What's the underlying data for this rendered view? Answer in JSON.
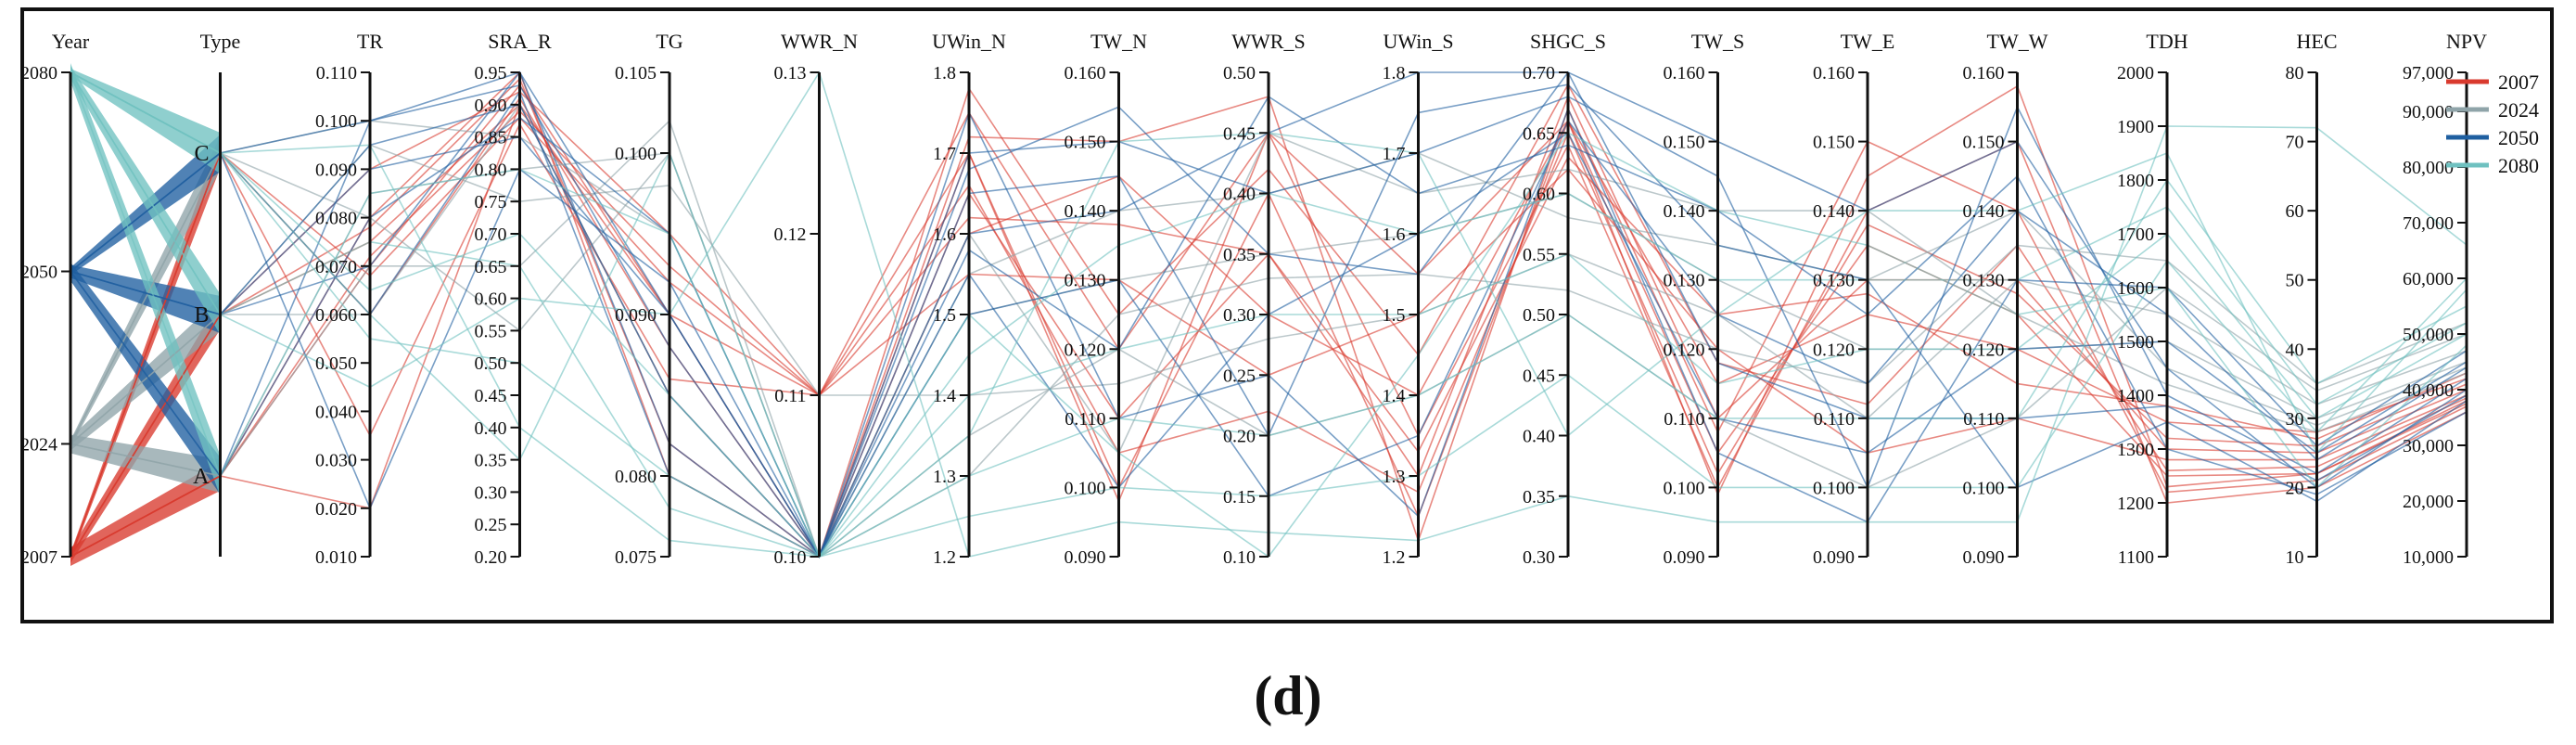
{
  "chart_data": {
    "type": "parallel-coordinates",
    "panel_label": "(d)",
    "axes": [
      {
        "name": "Year",
        "kind": "categorical",
        "ticks": [
          "2080",
          "2050",
          "2024",
          "2007"
        ],
        "tick_values": [
          2080,
          2050,
          2024,
          2007
        ],
        "range": [
          2007,
          2080
        ]
      },
      {
        "name": "Type",
        "kind": "categorical",
        "ticks": [
          "C",
          "B",
          "A"
        ],
        "tick_values": [
          3,
          2,
          1
        ],
        "range": [
          0.5,
          3.5
        ]
      },
      {
        "name": "TR",
        "ticks": [
          "0.110",
          "0.100",
          "0.090",
          "0.080",
          "0.070",
          "0.060",
          "0.050",
          "0.040",
          "0.030",
          "0.020",
          "0.010"
        ],
        "range": [
          0.01,
          0.11
        ]
      },
      {
        "name": "SRA_R",
        "ticks": [
          "0.95",
          "0.90",
          "0.85",
          "0.80",
          "0.75",
          "0.70",
          "0.65",
          "0.60",
          "0.55",
          "0.50",
          "0.45",
          "0.40",
          "0.35",
          "0.30",
          "0.25",
          "0.20"
        ],
        "range": [
          0.2,
          0.95
        ]
      },
      {
        "name": "TG",
        "ticks": [
          "0.105",
          "0.100",
          "0.090",
          "0.080",
          "0.075"
        ],
        "range": [
          0.075,
          0.105
        ]
      },
      {
        "name": "WWR_N",
        "ticks": [
          "0.13",
          "0.12",
          "0.11",
          "0.10"
        ],
        "range": [
          0.1,
          0.13
        ]
      },
      {
        "name": "UWin_N",
        "ticks": [
          "1.8",
          "1.7",
          "1.6",
          "1.5",
          "1.4",
          "1.3",
          "1.2"
        ],
        "range": [
          1.2,
          1.8
        ]
      },
      {
        "name": "TW_N",
        "ticks": [
          "0.160",
          "0.150",
          "0.140",
          "0.130",
          "0.120",
          "0.110",
          "0.100",
          "0.090"
        ],
        "range": [
          0.09,
          0.16
        ]
      },
      {
        "name": "WWR_S",
        "ticks": [
          "0.50",
          "0.45",
          "0.40",
          "0.35",
          "0.30",
          "0.25",
          "0.20",
          "0.15",
          "0.10"
        ],
        "range": [
          0.1,
          0.5
        ]
      },
      {
        "name": "UWin_S",
        "ticks": [
          "1.8",
          "1.7",
          "1.6",
          "1.5",
          "1.4",
          "1.3",
          "1.2"
        ],
        "range": [
          1.2,
          1.8
        ]
      },
      {
        "name": "SHGC_S",
        "ticks": [
          "0.70",
          "0.65",
          "0.60",
          "0.55",
          "0.50",
          "0.45",
          "0.40",
          "0.35",
          "0.30"
        ],
        "range": [
          0.3,
          0.7
        ]
      },
      {
        "name": "TW_S",
        "ticks": [
          "0.160",
          "0.150",
          "0.140",
          "0.130",
          "0.120",
          "0.110",
          "0.100",
          "0.090"
        ],
        "range": [
          0.09,
          0.16
        ]
      },
      {
        "name": "TW_E",
        "ticks": [
          "0.160",
          "0.150",
          "0.140",
          "0.130",
          "0.120",
          "0.110",
          "0.100",
          "0.090"
        ],
        "range": [
          0.09,
          0.16
        ]
      },
      {
        "name": "TW_W",
        "ticks": [
          "0.160",
          "0.150",
          "0.140",
          "0.130",
          "0.120",
          "0.110",
          "0.100",
          "0.090"
        ],
        "range": [
          0.09,
          0.16
        ]
      },
      {
        "name": "TDH",
        "ticks": [
          "2000",
          "1900",
          "1800",
          "1700",
          "1600",
          "1500",
          "1400",
          "1300",
          "1200",
          "1100"
        ],
        "range": [
          1100,
          2000
        ]
      },
      {
        "name": "HEC",
        "ticks": [
          "80",
          "70",
          "60",
          "50",
          "40",
          "30",
          "20",
          "10"
        ],
        "range": [
          10,
          80
        ]
      },
      {
        "name": "NPV",
        "ticks": [
          "97,000",
          "90,000",
          "80,000",
          "70,000",
          "60,000",
          "50,000",
          "40,000",
          "30,000",
          "20,000",
          "10,000"
        ],
        "range": [
          10000,
          97000
        ]
      }
    ],
    "legend": {
      "placement": "top-right",
      "entries": [
        {
          "label": "2007",
          "color": "#d93a2e"
        },
        {
          "label": "2024",
          "color": "#8fa4a9"
        },
        {
          "label": "2050",
          "color": "#1f5fa0"
        },
        {
          "label": "2080",
          "color": "#6fc1c0"
        }
      ]
    },
    "series": [
      {
        "name": "2007",
        "color": "#d93a2e",
        "profiles": [
          [
            2007,
            1,
            0.07,
            0.93,
            0.09,
            0.11,
            1.7,
            0.1,
            0.4,
            1.25,
            0.66,
            0.105,
            0.135,
            0.125,
            1250,
            22,
            38000
          ],
          [
            2007,
            2,
            0.075,
            0.9,
            0.085,
            0.1,
            1.65,
            0.11,
            0.35,
            1.3,
            0.68,
            0.11,
            0.13,
            0.13,
            1300,
            25,
            40000
          ],
          [
            2007,
            3,
            0.068,
            0.88,
            0.092,
            0.11,
            1.75,
            0.12,
            0.45,
            1.35,
            0.64,
            0.1,
            0.14,
            0.15,
            1200,
            20,
            36000
          ],
          [
            2007,
            1,
            0.08,
            0.95,
            0.08,
            0.1,
            1.6,
            0.145,
            0.3,
            1.4,
            0.66,
            0.115,
            0.125,
            0.12,
            1350,
            28,
            42000
          ],
          [
            2007,
            2,
            0.09,
            0.92,
            0.095,
            0.11,
            1.55,
            0.13,
            0.25,
            1.5,
            0.62,
            0.12,
            0.105,
            0.11,
            1280,
            24,
            39000
          ],
          [
            2007,
            3,
            0.06,
            0.91,
            0.088,
            0.1,
            1.72,
            0.15,
            0.48,
            1.22,
            0.67,
            0.108,
            0.15,
            0.14,
            1220,
            21,
            37000
          ],
          [
            2007,
            1,
            0.072,
            0.89,
            0.093,
            0.11,
            1.66,
            0.105,
            0.22,
            1.28,
            0.65,
            0.102,
            0.138,
            0.128,
            1320,
            26,
            41000
          ],
          [
            2007,
            2,
            0.078,
            0.94,
            0.082,
            0.1,
            1.78,
            0.125,
            0.42,
            1.45,
            0.69,
            0.118,
            0.112,
            0.135,
            1260,
            23,
            38500
          ],
          [
            2007,
            3,
            0.035,
            0.87,
            0.086,
            0.11,
            1.62,
            0.138,
            0.35,
            1.33,
            0.63,
            0.125,
            0.128,
            0.115,
            1380,
            27,
            43000
          ],
          [
            2007,
            1,
            0.02,
            0.9,
            0.09,
            0.1,
            1.7,
            0.098,
            0.45,
            1.55,
            0.66,
            0.099,
            0.145,
            0.158,
            1230,
            22,
            37500
          ]
        ]
      },
      {
        "name": "2024",
        "color": "#8fa4a9",
        "profiles": [
          [
            2024,
            1,
            0.085,
            0.8,
            0.1,
            0.1,
            1.5,
            0.13,
            0.35,
            1.6,
            0.6,
            0.13,
            0.12,
            0.12,
            1500,
            30,
            45000
          ],
          [
            2024,
            2,
            0.095,
            0.75,
            0.098,
            0.11,
            1.4,
            0.115,
            0.28,
            1.5,
            0.55,
            0.125,
            0.11,
            0.13,
            1550,
            32,
            47000
          ],
          [
            2024,
            3,
            0.1,
            0.85,
            0.095,
            0.1,
            1.55,
            0.14,
            0.4,
            1.7,
            0.58,
            0.135,
            0.13,
            0.14,
            1450,
            29,
            44000
          ],
          [
            2024,
            1,
            0.07,
            0.65,
            0.102,
            0.1,
            1.35,
            0.12,
            0.2,
            1.4,
            0.5,
            0.11,
            0.1,
            0.11,
            1600,
            34,
            50000
          ],
          [
            2024,
            2,
            0.06,
            0.9,
            0.085,
            0.1,
            1.6,
            0.105,
            0.45,
            1.65,
            0.62,
            0.14,
            0.14,
            0.125,
            1420,
            28,
            43000
          ],
          [
            2024,
            3,
            0.08,
            0.55,
            0.1,
            0.1,
            1.3,
            0.125,
            0.33,
            1.55,
            0.52,
            0.12,
            0.115,
            0.135,
            1650,
            35,
            52000
          ]
        ]
      },
      {
        "name": "2050",
        "color": "#1f5fa0",
        "profiles": [
          [
            2050,
            3,
            0.1,
            0.95,
            0.09,
            0.1,
            1.6,
            0.14,
            0.45,
            1.8,
            0.7,
            0.15,
            0.14,
            0.15,
            1450,
            20,
            40000
          ],
          [
            2050,
            2,
            0.095,
            0.9,
            0.085,
            0.1,
            1.7,
            0.15,
            0.4,
            1.7,
            0.68,
            0.145,
            0.1,
            0.155,
            1400,
            22,
            42000
          ],
          [
            2050,
            1,
            0.08,
            0.88,
            0.095,
            0.1,
            1.55,
            0.1,
            0.3,
            1.6,
            0.65,
            0.11,
            0.105,
            0.12,
            1500,
            25,
            45000
          ],
          [
            2050,
            3,
            0.06,
            0.92,
            0.08,
            0.1,
            1.65,
            0.145,
            0.2,
            1.75,
            0.69,
            0.135,
            0.13,
            0.1,
            1350,
            18,
            38000
          ],
          [
            2050,
            2,
            0.09,
            0.85,
            0.09,
            0.1,
            1.5,
            0.13,
            0.15,
            1.35,
            0.66,
            0.125,
            0.115,
            0.14,
            1550,
            24,
            44000
          ],
          [
            2050,
            1,
            0.1,
            0.93,
            0.088,
            0.1,
            1.75,
            0.11,
            0.25,
            1.25,
            0.67,
            0.105,
            0.095,
            0.13,
            1600,
            26,
            47000
          ],
          [
            2050,
            3,
            0.02,
            0.8,
            0.092,
            0.1,
            1.58,
            0.12,
            0.48,
            1.65,
            0.64,
            0.14,
            0.125,
            0.145,
            1300,
            19,
            36000
          ],
          [
            2050,
            2,
            0.07,
            0.95,
            0.082,
            0.1,
            1.68,
            0.155,
            0.35,
            1.55,
            0.7,
            0.118,
            0.11,
            0.11,
            1380,
            21,
            39000
          ]
        ]
      },
      {
        "name": "2080",
        "color": "#6fc1c0",
        "profiles": [
          [
            2080,
            3,
            0.065,
            0.7,
            0.085,
            0.1,
            1.4,
            0.12,
            0.3,
            1.5,
            0.55,
            0.115,
            0.12,
            0.12,
            1700,
            30,
            50000
          ],
          [
            2080,
            3,
            0.055,
            0.5,
            0.08,
            0.1,
            1.3,
            0.11,
            0.2,
            1.4,
            0.5,
            0.11,
            0.11,
            0.11,
            1800,
            35,
            55000
          ],
          [
            2080,
            2,
            0.075,
            0.65,
            0.078,
            0.1,
            1.25,
            0.1,
            0.15,
            1.3,
            0.45,
            0.1,
            0.1,
            0.1,
            1650,
            28,
            60000
          ],
          [
            2080,
            1,
            0.085,
            0.8,
            0.095,
            0.1,
            1.45,
            0.135,
            0.4,
            1.6,
            0.6,
            0.13,
            0.13,
            0.13,
            1750,
            32,
            52000
          ],
          [
            2080,
            3,
            0.095,
            0.4,
            0.076,
            0.1,
            1.35,
            0.15,
            0.45,
            1.7,
            0.4,
            0.125,
            0.14,
            0.14,
            1850,
            25,
            58000
          ],
          [
            2080,
            2,
            0.045,
            0.6,
            0.09,
            0.13,
            1.2,
            0.095,
            0.12,
            1.22,
            0.35,
            0.095,
            0.095,
            0.095,
            1900,
            72,
            66000
          ],
          [
            2080,
            3,
            0.06,
            0.35,
            0.1,
            0.1,
            1.5,
            0.105,
            0.1,
            1.45,
            0.65,
            0.14,
            0.135,
            0.125,
            1600,
            20,
            48000
          ]
        ]
      }
    ]
  }
}
